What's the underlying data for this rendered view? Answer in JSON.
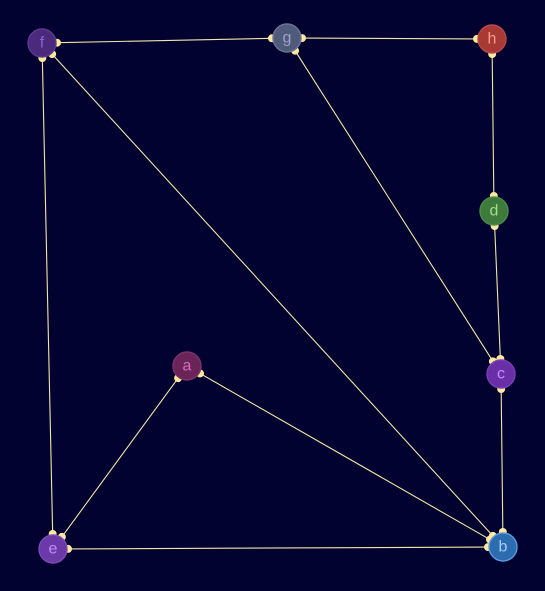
{
  "graph": {
    "directed": false,
    "nodes": [
      {
        "id": "f",
        "label": "f",
        "fill": "#4b2a7d",
        "stroke": "#5b3a90",
        "text": "#8a63d2"
      },
      {
        "id": "g",
        "label": "g",
        "fill": "#505a7a",
        "stroke": "#6b7496",
        "text": "#9aa3c8"
      },
      {
        "id": "h",
        "label": "h",
        "fill": "#a83a36",
        "stroke": "#b84a46",
        "text": "#ff9b8c"
      },
      {
        "id": "d",
        "label": "d",
        "fill": "#3d7a3c",
        "stroke": "#4c8c4b",
        "text": "#9fe08a"
      },
      {
        "id": "c",
        "label": "c",
        "fill": "#6a2fa6",
        "stroke": "#7a3fb8",
        "text": "#c58cff"
      },
      {
        "id": "a",
        "label": "a",
        "fill": "#6a2458",
        "stroke": "#7a3468",
        "text": "#d46cbf"
      },
      {
        "id": "e",
        "label": "e",
        "fill": "#6b3aa8",
        "stroke": "#7b4ab8",
        "text": "#c08cff"
      },
      {
        "id": "b",
        "label": "b",
        "fill": "#2e6cb0",
        "stroke": "#5a9be0",
        "text": "#9fd0ff"
      }
    ],
    "edges": [
      {
        "source": "f",
        "target": "g"
      },
      {
        "source": "g",
        "target": "h"
      },
      {
        "source": "h",
        "target": "d"
      },
      {
        "source": "d",
        "target": "c"
      },
      {
        "source": "g",
        "target": "c"
      },
      {
        "source": "c",
        "target": "b"
      },
      {
        "source": "f",
        "target": "b"
      },
      {
        "source": "a",
        "target": "b"
      },
      {
        "source": "a",
        "target": "e"
      },
      {
        "source": "f",
        "target": "e"
      },
      {
        "source": "e",
        "target": "b"
      }
    ],
    "edge_color": "#f2e6a6",
    "endpoint_color": "#ffe9a0",
    "background": "#020230"
  }
}
